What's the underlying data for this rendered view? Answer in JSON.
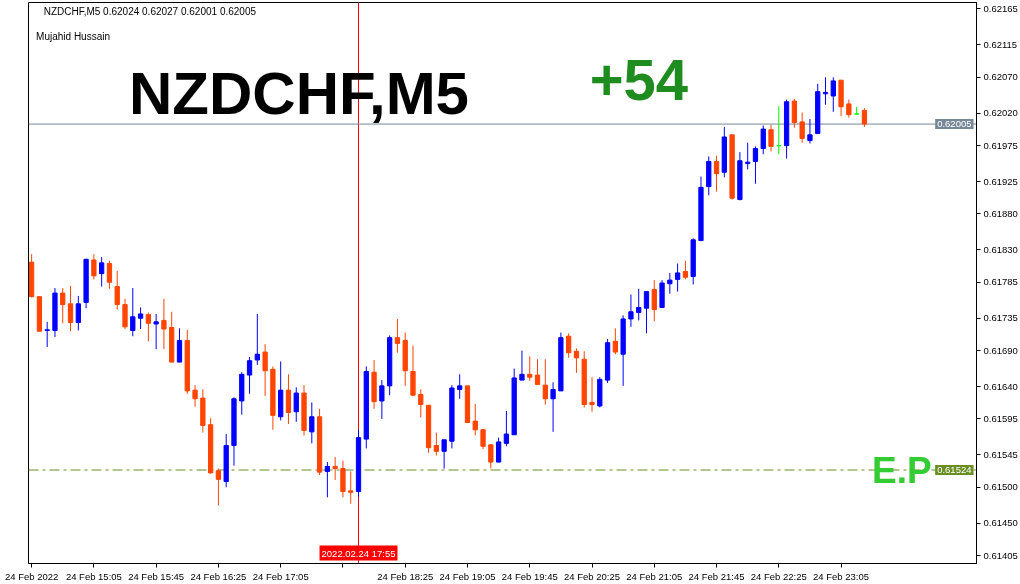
{
  "chart_data": {
    "type": "candlestick",
    "title": "NZDCHF,M5",
    "x": [
      "2022-02-24T14:25",
      "2022-02-24T14:30",
      "2022-02-24T14:35",
      "2022-02-24T14:40",
      "2022-02-24T14:45",
      "2022-02-24T14:50",
      "2022-02-24T14:55",
      "2022-02-24T15:00",
      "2022-02-24T15:05",
      "2022-02-24T15:10",
      "2022-02-24T15:15",
      "2022-02-24T15:20",
      "2022-02-24T15:25",
      "2022-02-24T15:30",
      "2022-02-24T15:35",
      "2022-02-24T15:40",
      "2022-02-24T15:45",
      "2022-02-24T15:50",
      "2022-02-24T15:55",
      "2022-02-24T16:00",
      "2022-02-24T16:05",
      "2022-02-24T16:10",
      "2022-02-24T16:15",
      "2022-02-24T16:20",
      "2022-02-24T16:25",
      "2022-02-24T16:30",
      "2022-02-24T16:35",
      "2022-02-24T16:40",
      "2022-02-24T16:45",
      "2022-02-24T16:50",
      "2022-02-24T16:55",
      "2022-02-24T17:00",
      "2022-02-24T17:05",
      "2022-02-24T17:10",
      "2022-02-24T17:15",
      "2022-02-24T17:20",
      "2022-02-24T17:25",
      "2022-02-24T17:30",
      "2022-02-24T17:35",
      "2022-02-24T17:40",
      "2022-02-24T17:45",
      "2022-02-24T17:50",
      "2022-02-24T17:55",
      "2022-02-24T18:00",
      "2022-02-24T18:05",
      "2022-02-24T18:10",
      "2022-02-24T18:15",
      "2022-02-24T18:20",
      "2022-02-24T18:25",
      "2022-02-24T18:30",
      "2022-02-24T18:35",
      "2022-02-24T18:40",
      "2022-02-24T18:45",
      "2022-02-24T18:50",
      "2022-02-24T18:55",
      "2022-02-24T19:00",
      "2022-02-24T19:05",
      "2022-02-24T19:10",
      "2022-02-24T19:15",
      "2022-02-24T19:20",
      "2022-02-24T19:25",
      "2022-02-24T19:30",
      "2022-02-24T19:35",
      "2022-02-24T19:40",
      "2022-02-24T19:45",
      "2022-02-24T19:50",
      "2022-02-24T19:55",
      "2022-02-24T20:00",
      "2022-02-24T20:05",
      "2022-02-24T20:10",
      "2022-02-24T20:15",
      "2022-02-24T20:20",
      "2022-02-24T20:25",
      "2022-02-24T20:30",
      "2022-02-24T20:35",
      "2022-02-24T20:40",
      "2022-02-24T20:45",
      "2022-02-24T20:50",
      "2022-02-24T20:55",
      "2022-02-24T21:00",
      "2022-02-24T21:05",
      "2022-02-24T21:10",
      "2022-02-24T21:15",
      "2022-02-24T21:20",
      "2022-02-24T21:25",
      "2022-02-24T21:30",
      "2022-02-24T21:35",
      "2022-02-24T21:40",
      "2022-02-24T21:45",
      "2022-02-24T21:50",
      "2022-02-24T21:55",
      "2022-02-24T22:00",
      "2022-02-24T22:05",
      "2022-02-24T22:10",
      "2022-02-24T22:15",
      "2022-02-24T22:20",
      "2022-02-24T22:25",
      "2022-02-24T22:30",
      "2022-02-24T22:35",
      "2022-02-24T22:40",
      "2022-02-24T22:45",
      "2022-02-24T22:50",
      "2022-02-24T22:55",
      "2022-02-24T23:00",
      "2022-02-24T23:05",
      "2022-02-24T23:10",
      "2022-02-24T23:15",
      "2022-02-24T23:20"
    ],
    "ohlc": [
      [
        0.61813,
        0.61824,
        0.61764,
        0.61765
      ],
      [
        0.61765,
        0.61765,
        0.61717,
        0.61717
      ],
      [
        0.61718,
        0.6173,
        0.61695,
        0.61719
      ],
      [
        0.61718,
        0.61777,
        0.61709,
        0.6177
      ],
      [
        0.6177,
        0.61777,
        0.61728,
        0.61754
      ],
      [
        0.61755,
        0.6178,
        0.61717,
        0.61729
      ],
      [
        0.61729,
        0.61766,
        0.61718,
        0.61755
      ],
      [
        0.61757,
        0.61817,
        0.61749,
        0.61817
      ],
      [
        0.61816,
        0.61824,
        0.61789,
        0.61794
      ],
      [
        0.61797,
        0.6182,
        0.61779,
        0.61812
      ],
      [
        0.61811,
        0.61815,
        0.61776,
        0.61785
      ],
      [
        0.61779,
        0.61801,
        0.61747,
        0.61754
      ],
      [
        0.61754,
        0.61762,
        0.6172,
        0.61723
      ],
      [
        0.61718,
        0.61777,
        0.6171,
        0.61737
      ],
      [
        0.61735,
        0.6175,
        0.6172,
        0.61741
      ],
      [
        0.6174,
        0.61743,
        0.61703,
        0.61728
      ],
      [
        0.61727,
        0.61741,
        0.61692,
        0.6173
      ],
      [
        0.61732,
        0.61762,
        0.61692,
        0.6172
      ],
      [
        0.61722,
        0.61744,
        0.61674,
        0.61674
      ],
      [
        0.61674,
        0.61721,
        0.61674,
        0.61704
      ],
      [
        0.61704,
        0.61719,
        0.6163,
        0.61634
      ],
      [
        0.61635,
        0.61642,
        0.61612,
        0.61623
      ],
      [
        0.61624,
        0.61636,
        0.61576,
        0.61586
      ],
      [
        0.61587,
        0.61596,
        0.61519,
        0.6152
      ],
      [
        0.61523,
        0.61526,
        0.61475,
        0.61511
      ],
      [
        0.61508,
        0.61574,
        0.615,
        0.61558
      ],
      [
        0.61558,
        0.61625,
        0.6153,
        0.61623
      ],
      [
        0.6162,
        0.6166,
        0.61601,
        0.61657
      ],
      [
        0.61656,
        0.61681,
        0.6163,
        0.61676
      ],
      [
        0.61677,
        0.61741,
        0.6167,
        0.61685
      ],
      [
        0.61688,
        0.61699,
        0.61627,
        0.61662
      ],
      [
        0.61664,
        0.61668,
        0.6158,
        0.616
      ],
      [
        0.61598,
        0.61675,
        0.61593,
        0.61635
      ],
      [
        0.61635,
        0.61657,
        0.61588,
        0.61604
      ],
      [
        0.61605,
        0.61639,
        0.61591,
        0.61631
      ],
      [
        0.61631,
        0.61642,
        0.61572,
        0.61579
      ],
      [
        0.61577,
        0.61618,
        0.61561,
        0.61598
      ],
      [
        0.61598,
        0.61609,
        0.61517,
        0.61521
      ],
      [
        0.61522,
        0.61535,
        0.61486,
        0.61529
      ],
      [
        0.61529,
        0.61542,
        0.6151,
        0.61526
      ],
      [
        0.61526,
        0.61537,
        0.61486,
        0.61494
      ],
      [
        0.61495,
        0.61522,
        0.61477,
        0.61493
      ],
      [
        0.61494,
        0.6158,
        0.61487,
        0.61569
      ],
      [
        0.61567,
        0.61668,
        0.61554,
        0.61661
      ],
      [
        0.6166,
        0.61677,
        0.61609,
        0.61619
      ],
      [
        0.6162,
        0.61649,
        0.61595,
        0.61641
      ],
      [
        0.61641,
        0.61711,
        0.61628,
        0.61708
      ],
      [
        0.61708,
        0.61734,
        0.61687,
        0.617
      ],
      [
        0.61704,
        0.61715,
        0.61641,
        0.61662
      ],
      [
        0.61661,
        0.61697,
        0.61627,
        0.61628
      ],
      [
        0.61629,
        0.61636,
        0.61597,
        0.61615
      ],
      [
        0.61614,
        0.61614,
        0.61548,
        0.61555
      ],
      [
        0.61558,
        0.61576,
        0.61544,
        0.6155
      ],
      [
        0.6155,
        0.61566,
        0.61526,
        0.61566
      ],
      [
        0.61564,
        0.61642,
        0.61554,
        0.61638
      ],
      [
        0.61636,
        0.61657,
        0.61623,
        0.61641
      ],
      [
        0.61641,
        0.61641,
        0.6159,
        0.6159
      ],
      [
        0.61592,
        0.61616,
        0.61572,
        0.6158
      ],
      [
        0.6158,
        0.61581,
        0.61553,
        0.61557
      ],
      [
        0.61559,
        0.61559,
        0.61526,
        0.61535
      ],
      [
        0.61535,
        0.61569,
        0.61535,
        0.61563
      ],
      [
        0.61561,
        0.61606,
        0.61557,
        0.61574
      ],
      [
        0.61573,
        0.61665,
        0.61573,
        0.61652
      ],
      [
        0.61649,
        0.6169,
        0.61649,
        0.61657
      ],
      [
        0.61657,
        0.61682,
        0.61648,
        0.61653
      ],
      [
        0.61656,
        0.61678,
        0.61643,
        0.61643
      ],
      [
        0.61642,
        0.61678,
        0.61615,
        0.61623
      ],
      [
        0.61623,
        0.61646,
        0.61577,
        0.61636
      ],
      [
        0.61634,
        0.61715,
        0.61634,
        0.61708
      ],
      [
        0.6171,
        0.61714,
        0.6168,
        0.61687
      ],
      [
        0.61689,
        0.61693,
        0.61659,
        0.6168
      ],
      [
        0.61678,
        0.61689,
        0.61611,
        0.61615
      ],
      [
        0.61618,
        0.61653,
        0.61605,
        0.61615
      ],
      [
        0.61613,
        0.61653,
        0.61611,
        0.6165
      ],
      [
        0.61649,
        0.61706,
        0.61645,
        0.61701
      ],
      [
        0.61703,
        0.61721,
        0.61685,
        0.61688
      ],
      [
        0.61685,
        0.61739,
        0.61641,
        0.61734
      ],
      [
        0.61734,
        0.61768,
        0.61723,
        0.61744
      ],
      [
        0.61743,
        0.61776,
        0.61732,
        0.6175
      ],
      [
        0.61749,
        0.61772,
        0.61714,
        0.61772
      ],
      [
        0.61775,
        0.61788,
        0.61731,
        0.61747
      ],
      [
        0.6175,
        0.61788,
        0.6175,
        0.61784
      ],
      [
        0.61783,
        0.61798,
        0.61769,
        0.61788
      ],
      [
        0.61789,
        0.61811,
        0.61772,
        0.61798
      ],
      [
        0.618,
        0.61815,
        0.61789,
        0.61792
      ],
      [
        0.61793,
        0.61846,
        0.61782,
        0.61844
      ],
      [
        0.61843,
        0.61932,
        0.61843,
        0.61917
      ],
      [
        0.61918,
        0.6196,
        0.61906,
        0.61953
      ],
      [
        0.61953,
        0.61961,
        0.61911,
        0.61936
      ],
      [
        0.61938,
        0.62001,
        0.61931,
        0.61987
      ],
      [
        0.6199,
        0.6199,
        0.619,
        0.61902
      ],
      [
        0.619,
        0.61966,
        0.61899,
        0.61954
      ],
      [
        0.6195,
        0.61979,
        0.61942,
        0.61952
      ],
      [
        0.61953,
        0.61974,
        0.61922,
        0.61971
      ],
      [
        0.61971,
        0.62003,
        0.61963,
        0.61998
      ],
      [
        0.61997,
        0.62004,
        0.61967,
        0.61974
      ],
      [
        0.61975,
        0.6203,
        0.61963,
        0.61975
      ],
      [
        0.61975,
        0.62039,
        0.61957,
        0.62036
      ],
      [
        0.62037,
        0.6204,
        0.62,
        0.62007
      ],
      [
        0.62008,
        0.62021,
        0.61979,
        0.61985
      ],
      [
        0.61982,
        0.62012,
        0.61978,
        0.6199
      ],
      [
        0.61992,
        0.62061,
        0.61992,
        0.6205
      ],
      [
        0.62047,
        0.6207,
        0.62032,
        0.62049
      ],
      [
        0.62044,
        0.6207,
        0.62022,
        0.62065
      ],
      [
        0.62066,
        0.62066,
        0.62016,
        0.62029
      ],
      [
        0.62033,
        0.62039,
        0.62014,
        0.62018
      ],
      [
        0.62019,
        0.62029,
        0.62018,
        0.62019
      ],
      [
        0.62024,
        0.62027,
        0.62001,
        0.62005
      ]
    ],
    "colors": [
      "#ff4500",
      "#ff4500",
      "#0000ff",
      "#0000ff",
      "#ff4500",
      "#ff4500",
      "#0000ff",
      "#0000ff",
      "#ff4500",
      "#0000ff",
      "#ff4500",
      "#ff4500",
      "#ff4500",
      "#0000ff",
      "#0000ff",
      "#ff4500",
      "#0000ff",
      "#ff4500",
      "#ff4500",
      "#0000ff",
      "#ff4500",
      "#ff4500",
      "#ff4500",
      "#ff4500",
      "#ff4500",
      "#0000ff",
      "#0000ff",
      "#0000ff",
      "#0000ff",
      "#0000ff",
      "#ff4500",
      "#ff4500",
      "#0000ff",
      "#ff4500",
      "#0000ff",
      "#ff4500",
      "#0000ff",
      "#ff4500",
      "#0000ff",
      "#ff4500",
      "#ff4500",
      "#ff4500",
      "#0000ff",
      "#0000ff",
      "#ff4500",
      "#0000ff",
      "#0000ff",
      "#ff4500",
      "#ff4500",
      "#ff4500",
      "#ff4500",
      "#ff4500",
      "#ff4500",
      "#0000ff",
      "#0000ff",
      "#0000ff",
      "#ff4500",
      "#ff4500",
      "#ff4500",
      "#ff4500",
      "#0000ff",
      "#0000ff",
      "#0000ff",
      "#0000ff",
      "#ff4500",
      "#ff4500",
      "#ff4500",
      "#0000ff",
      "#0000ff",
      "#ff4500",
      "#ff4500",
      "#ff4500",
      "#ff4500",
      "#0000ff",
      "#0000ff",
      "#ff4500",
      "#0000ff",
      "#0000ff",
      "#0000ff",
      "#0000ff",
      "#ff4500",
      "#0000ff",
      "#0000ff",
      "#0000ff",
      "#ff4500",
      "#0000ff",
      "#0000ff",
      "#0000ff",
      "#ff4500",
      "#0000ff",
      "#ff4500",
      "#0000ff",
      "#0000ff",
      "#0000ff",
      "#0000ff",
      "#ff4500",
      "#00ff00",
      "#0000ff",
      "#ff4500",
      "#ff4500",
      "#0000ff",
      "#0000ff",
      "#0000ff",
      "#0000ff",
      "#ff4500",
      "#ff4500",
      "#00ff00",
      "#ff4500"
    ],
    "xlim": [
      "2022-02-24T14:23",
      "2022-02-25T00:32"
    ],
    "xticks": [
      {
        "value": "2022-02-24T14:25",
        "label": "24 Feb 2022"
      },
      {
        "value": "2022-02-24T15:05",
        "label": "24 Feb 15:05"
      },
      {
        "value": "2022-02-24T15:45",
        "label": "24 Feb 15:45"
      },
      {
        "value": "2022-02-24T16:25",
        "label": "24 Feb 16:25"
      },
      {
        "value": "2022-02-24T17:05",
        "label": "24 Feb 17:05"
      },
      {
        "value": "2022-02-24T17:45",
        "label": null
      },
      {
        "value": "2022-02-24T18:25",
        "label": "24 Feb 18:25"
      },
      {
        "value": "2022-02-24T19:05",
        "label": "24 Feb 19:05"
      },
      {
        "value": "2022-02-24T19:45",
        "label": "24 Feb 19:45"
      },
      {
        "value": "2022-02-24T20:25",
        "label": "24 Feb 20:25"
      },
      {
        "value": "2022-02-24T21:05",
        "label": "24 Feb 21:05"
      },
      {
        "value": "2022-02-24T21:45",
        "label": "24 Feb 21:45"
      },
      {
        "value": "2022-02-24T22:25",
        "label": "24 Feb 22:25"
      },
      {
        "value": "2022-02-24T23:05",
        "label": "24 Feb 23:05"
      }
    ],
    "ylim": [
      0.61394,
      0.62174
    ],
    "yticks": [
      0.62165,
      0.62115,
      {
        "value": 0.6207,
        "label": "0.62070"
      },
      {
        "value": 0.6202,
        "label": "0.62020"
      },
      0.61975,
      0.61925,
      {
        "value": 0.6188,
        "label": "0.61880"
      },
      {
        "value": 0.6183,
        "label": "0.61830"
      },
      0.61785,
      0.61735,
      {
        "value": 0.6169,
        "label": "0.61690"
      },
      {
        "value": 0.6164,
        "label": "0.61640"
      },
      0.61595,
      0.61545,
      {
        "value": 0.615,
        "label": "0.61500"
      },
      {
        "value": 0.6145,
        "label": "0.61450"
      },
      0.61405
    ],
    "ref_lines": [
      {
        "axis": "x",
        "value": "2022-02-24T17:55",
        "label": "2022.02.24 17:55",
        "color": "#ff0000"
      },
      {
        "axis": "y",
        "value": 0.62005,
        "label": "0.62005",
        "color": "#778899"
      },
      {
        "axis": "y",
        "value": 0.61524,
        "label": "0.61524",
        "color": "#6b8e23",
        "line_style": "dashdot"
      }
    ],
    "annotations": [
      "NZDCHF,M5 0.62024 0.62027 0.62001 0.62005",
      "Mujahid Hussain",
      "+54",
      {
        "text": "E.P",
        "x": "2022-02-24T23:44",
        "y": 0.61524
      }
    ]
  }
}
